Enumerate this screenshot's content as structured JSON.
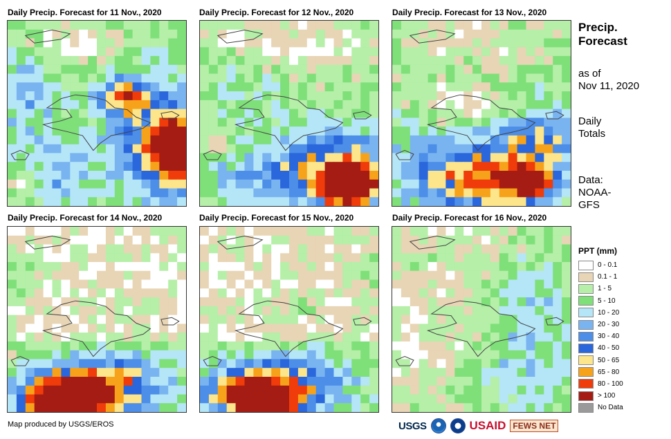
{
  "panels": [
    {
      "title": "Daily Precip. Forecast for 11 Nov., 2020",
      "day": 0
    },
    {
      "title": "Daily Precip. Forecast for 12 Nov., 2020",
      "day": 1
    },
    {
      "title": "Daily Precip. Forecast for 13 Nov., 2020",
      "day": 2
    },
    {
      "title": "Daily Precip. Forecast for 14 Nov., 2020",
      "day": 3
    },
    {
      "title": "Daily Precip. Forecast for 15 Nov., 2020",
      "day": 4
    },
    {
      "title": "Daily Precip. Forecast for 16 Nov., 2020",
      "day": 5
    }
  ],
  "side": {
    "title_line1": "Precip.",
    "title_line2": "Forecast",
    "asof_line1": "as of",
    "asof_line2": "Nov 11, 2020",
    "totals_line1": "Daily",
    "totals_line2": "Totals",
    "data_line1": "Data:",
    "data_line2": "NOAA-",
    "data_line3": "GFS"
  },
  "legend": {
    "title": "PPT (mm)",
    "items": [
      {
        "label": "0 - 0.1",
        "color": "#ffffff"
      },
      {
        "label": "0.1 - 1",
        "color": "#e8d5b5"
      },
      {
        "label": "1 - 5",
        "color": "#b5efa8"
      },
      {
        "label": "5 - 10",
        "color": "#7fe07a"
      },
      {
        "label": "10 - 20",
        "color": "#b4e6f8"
      },
      {
        "label": "20 - 30",
        "color": "#7ab4f0"
      },
      {
        "label": "30 - 40",
        "color": "#4c8ee8"
      },
      {
        "label": "40 - 50",
        "color": "#2a66dc"
      },
      {
        "label": "50 - 65",
        "color": "#fce58a"
      },
      {
        "label": "65 - 80",
        "color": "#f7a21b"
      },
      {
        "label": "80 - 100",
        "color": "#f03c0a"
      },
      {
        "label": "> 100",
        "color": "#a51c14"
      },
      {
        "label": "No Data",
        "color": "#9a9a9a"
      }
    ]
  },
  "footer": "Map produced by USGS/EROS",
  "logos": {
    "usgs": "USGS",
    "usaid": "USAID",
    "fews": "FEWS NET"
  }
}
